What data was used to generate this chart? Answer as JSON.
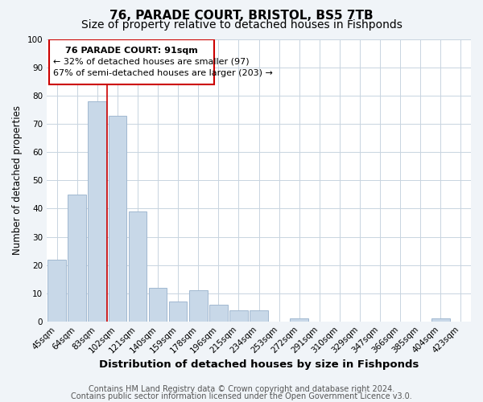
{
  "title": "76, PARADE COURT, BRISTOL, BS5 7TB",
  "subtitle": "Size of property relative to detached houses in Fishponds",
  "xlabel": "Distribution of detached houses by size in Fishponds",
  "ylabel": "Number of detached properties",
  "bar_labels": [
    "45sqm",
    "64sqm",
    "83sqm",
    "102sqm",
    "121sqm",
    "140sqm",
    "159sqm",
    "178sqm",
    "196sqm",
    "215sqm",
    "234sqm",
    "253sqm",
    "272sqm",
    "291sqm",
    "310sqm",
    "329sqm",
    "347sqm",
    "366sqm",
    "385sqm",
    "404sqm",
    "423sqm"
  ],
  "bar_values": [
    22,
    45,
    78,
    73,
    39,
    12,
    7,
    11,
    6,
    4,
    4,
    0,
    1,
    0,
    0,
    0,
    0,
    0,
    0,
    1,
    0
  ],
  "bar_color": "#c8d8e8",
  "bar_edge_color": "#a0b8d0",
  "highlight_bar_index": 2,
  "highlight_line_color": "#cc0000",
  "ylim": [
    0,
    100
  ],
  "yticks": [
    0,
    10,
    20,
    30,
    40,
    50,
    60,
    70,
    80,
    90,
    100
  ],
  "annotation_title": "76 PARADE COURT: 91sqm",
  "annotation_line1": "← 32% of detached houses are smaller (97)",
  "annotation_line2": "67% of semi-detached houses are larger (203) →",
  "annotation_box_color": "#ffffff",
  "annotation_box_edge_color": "#cc0000",
  "footer_line1": "Contains HM Land Registry data © Crown copyright and database right 2024.",
  "footer_line2": "Contains public sector information licensed under the Open Government Licence v3.0.",
  "background_color": "#f0f4f8",
  "plot_background_color": "#ffffff",
  "grid_color": "#c8d4e0",
  "title_fontsize": 11,
  "subtitle_fontsize": 10,
  "xlabel_fontsize": 9.5,
  "ylabel_fontsize": 8.5,
  "tick_fontsize": 7.5,
  "annotation_fontsize": 8,
  "footer_fontsize": 7
}
